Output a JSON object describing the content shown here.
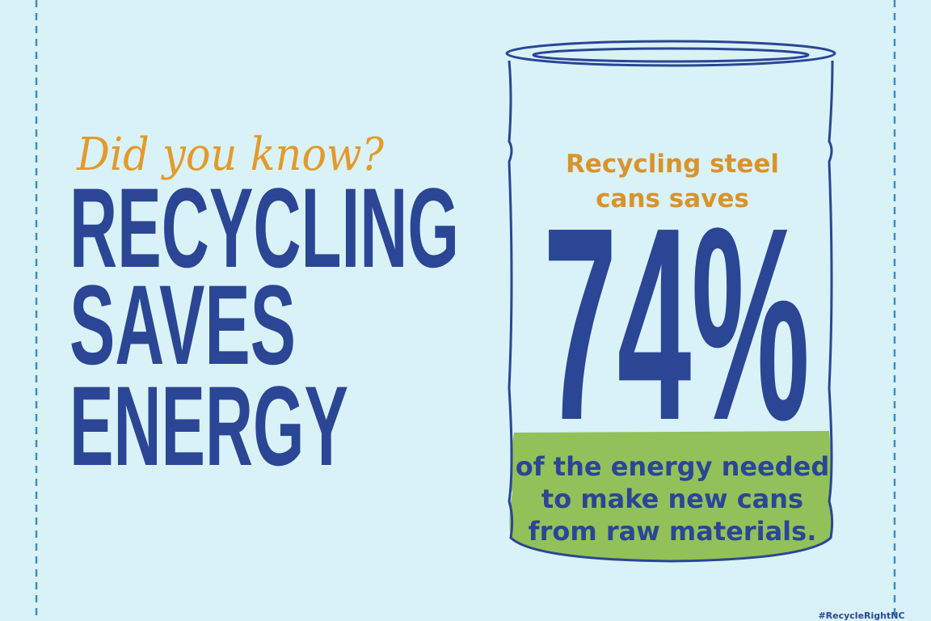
{
  "kicker": "Did you know?",
  "headline": [
    "RECYCLING",
    "SAVES",
    "ENERGY"
  ],
  "can": {
    "intro": [
      "Recycling steel",
      "cans saves"
    ],
    "figure": "74%",
    "outro": [
      "of the energy needed",
      "to make new cans",
      "from raw materials."
    ]
  },
  "hashtag": "#RecycleRightNC"
}
